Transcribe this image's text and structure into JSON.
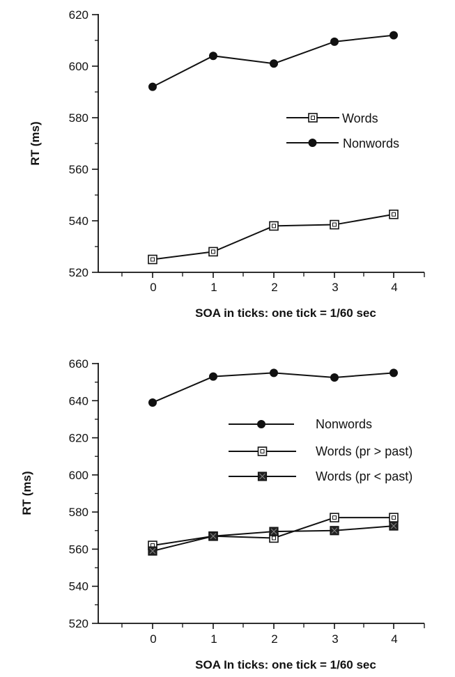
{
  "chart_data": [
    {
      "type": "line",
      "x": [
        0,
        1,
        2,
        3,
        4
      ],
      "xticks": [
        "0",
        "1",
        "2",
        "3",
        "4"
      ],
      "xlabel": "SOA  in  ticks:   one  tick  =  1/60  sec",
      "ylabel": "RT  (ms)",
      "ylim": [
        520,
        620
      ],
      "yticks": [
        "520",
        "540",
        "560",
        "580",
        "600",
        "620"
      ],
      "grid": false,
      "legend_position": "right",
      "series": [
        {
          "name": "Words",
          "marker": "open-square",
          "color": "#111111",
          "values": [
            525,
            528,
            538,
            538.5,
            542.5
          ]
        },
        {
          "name": "Nonwords",
          "marker": "filled-diamond",
          "color": "#111111",
          "values": [
            592,
            604,
            601,
            609.5,
            612
          ]
        }
      ]
    },
    {
      "type": "line",
      "x": [
        0,
        1,
        2,
        3,
        4
      ],
      "xticks": [
        "0",
        "1",
        "2",
        "3",
        "4"
      ],
      "xlabel": "SOA  In  ticks:  one  tick  =  1/60  sec",
      "ylabel": "RT  (ms)",
      "ylim": [
        520,
        660
      ],
      "yticks": [
        "520",
        "540",
        "560",
        "580",
        "600",
        "620",
        "640",
        "660"
      ],
      "grid": false,
      "legend_position": "right",
      "series": [
        {
          "name": "Nonwords",
          "marker": "filled-diamond",
          "color": "#111111",
          "values": [
            639,
            653,
            655,
            652.5,
            655
          ]
        },
        {
          "name": "Words (pr > past)",
          "marker": "open-square",
          "color": "#111111",
          "values": [
            562,
            567,
            566,
            577,
            577
          ]
        },
        {
          "name": "Words (pr < past)",
          "marker": "filled-square",
          "color": "#111111",
          "values": [
            559,
            567,
            569.5,
            570,
            572.5
          ]
        }
      ]
    }
  ]
}
